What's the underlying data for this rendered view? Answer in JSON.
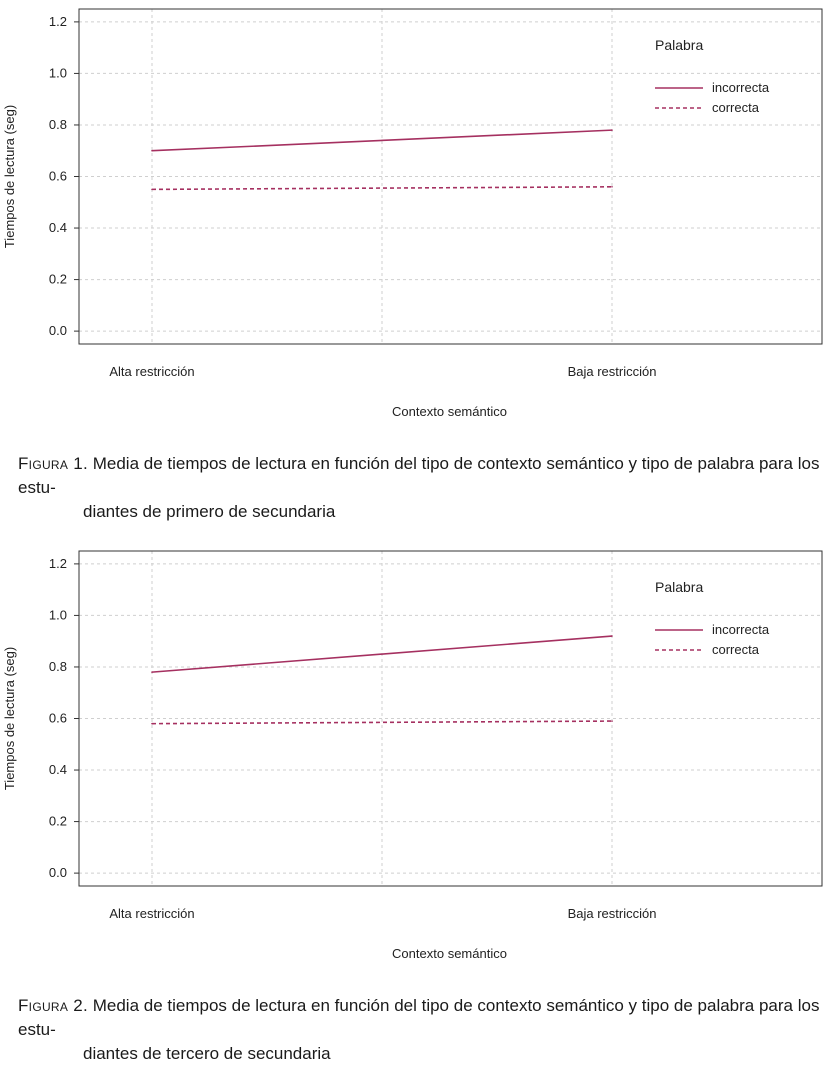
{
  "colors": {
    "line": "#a53060",
    "grid": "#cfcfcf",
    "frame": "#333333"
  },
  "chart_data": [
    {
      "type": "line",
      "categories": [
        "Alta restricción",
        "Baja restricción"
      ],
      "series": [
        {
          "name": "incorrecta",
          "values": [
            0.7,
            0.78
          ],
          "style": "solid"
        },
        {
          "name": "correcta",
          "values": [
            0.55,
            0.56
          ],
          "style": "dashed"
        }
      ],
      "xlabel": "Contexto semántico",
      "ylabel": "Tiempos de lectura (seg)",
      "ylim": [
        -0.05,
        1.25
      ],
      "yticks": [
        "0.0",
        "0.2",
        "0.4",
        "0.6",
        "0.8",
        "1.0",
        "1.2"
      ],
      "legend_title": "Palabra",
      "legend_position": "top-right",
      "grid": true
    },
    {
      "type": "line",
      "categories": [
        "Alta restricción",
        "Baja restricción"
      ],
      "series": [
        {
          "name": "incorrecta",
          "values": [
            0.78,
            0.92
          ],
          "style": "solid"
        },
        {
          "name": "correcta",
          "values": [
            0.58,
            0.59
          ],
          "style": "dashed"
        }
      ],
      "xlabel": "Contexto semántico",
      "ylabel": "Tiempos de lectura (seg)",
      "ylim": [
        -0.05,
        1.25
      ],
      "yticks": [
        "0.0",
        "0.2",
        "0.4",
        "0.6",
        "0.8",
        "1.0",
        "1.2"
      ],
      "legend_title": "Palabra",
      "legend_position": "top-right",
      "grid": true
    }
  ],
  "captions": [
    {
      "tag": "Figura 1.",
      "text_line1": "Media de tiempos de lectura en función del tipo de contexto semántico y tipo de palabra para los estu-",
      "text_line2": "diantes de primero de secundaria"
    },
    {
      "tag": "Figura 2.",
      "text_line1": "Media de tiempos de lectura en función del tipo de contexto semántico y tipo de palabra para los estu-",
      "text_line2": "diantes de tercero de secundaria"
    }
  ]
}
